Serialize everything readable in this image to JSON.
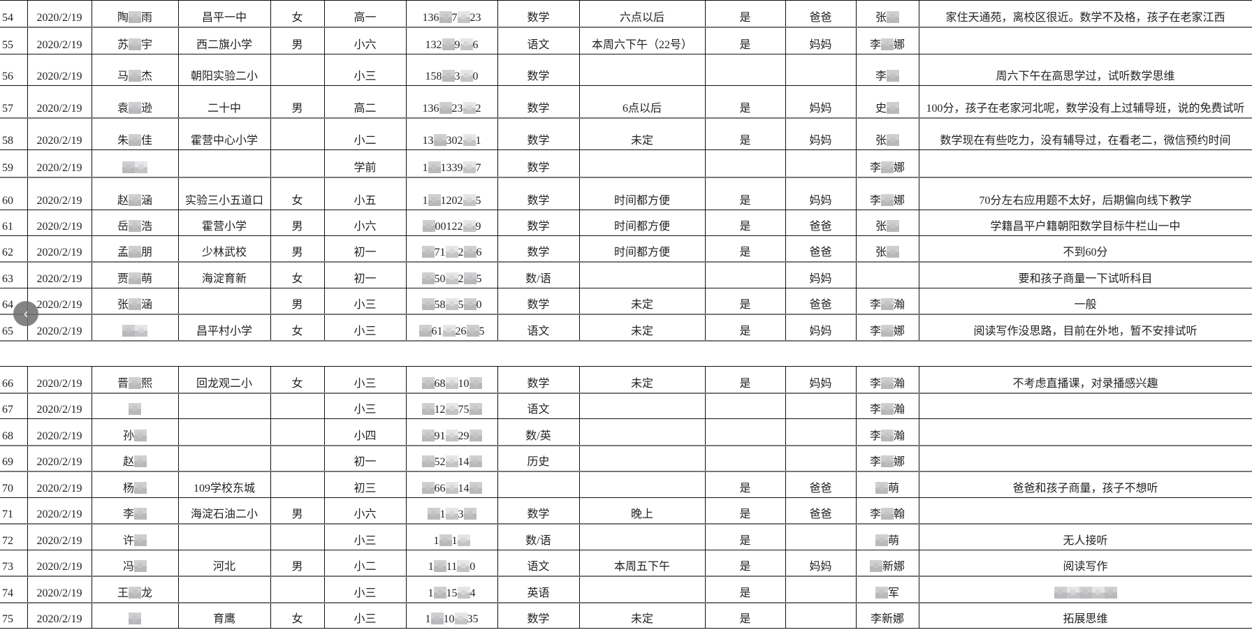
{
  "mask_char": "■",
  "rows": [
    [
      "54",
      "2020/2/19",
      "陶■雨",
      "昌平一中",
      "女",
      "高一",
      "136■7■23",
      "数学",
      "六点以后",
      "是",
      "爸爸",
      "张■",
      "家住天通苑，离校区很近。数学不及格，孩子在老家江西"
    ],
    [
      "55",
      "2020/2/19",
      "苏■宇",
      "西二旗小学",
      "男",
      "小六",
      "132■9■6",
      "语文",
      "本周六下午（22号）",
      "是",
      "妈妈",
      "李■娜",
      ""
    ],
    [
      "56",
      "2020/2/19",
      "马■杰",
      "朝阳实验二小",
      "",
      "小三",
      "158■3■0",
      "数学",
      "",
      "",
      "",
      "李■",
      "周六下午在高思学过，试听数学思维"
    ],
    [
      "57",
      "2020/2/19",
      "袁■逊",
      "二十中",
      "男",
      "高二",
      "136■23■2",
      "数学",
      "6点以后",
      "是",
      "妈妈",
      "史■",
      "100分，孩子在老家河北呢，数学没有上过辅导班，说的免费试听"
    ],
    [
      "58",
      "2020/2/19",
      "朱■佳",
      "霍营中心小学",
      "",
      "小二",
      "13■302■1",
      "数学",
      "未定",
      "是",
      "妈妈",
      "张■",
      "数学现在有些吃力，没有辅导过，在看老二，微信预约时间"
    ],
    [
      "59",
      "2020/2/19",
      "■■",
      "",
      "",
      "学前",
      "1■1339■7",
      "数学",
      "",
      "",
      "",
      "李■娜",
      ""
    ],
    [
      "60",
      "2020/2/19",
      "赵■涵",
      "实验三小五道口",
      "女",
      "小五",
      "1■1202■5",
      "数学",
      "时间都方便",
      "是",
      "妈妈",
      "李■娜",
      "70分左右应用题不太好，后期偏向线下教学"
    ],
    [
      "61",
      "2020/2/19",
      "岳■浩",
      "霍营小学",
      "男",
      "小六",
      "■00122■9",
      "数学",
      "时间都方便",
      "是",
      "爸爸",
      "张■",
      "学籍昌平户籍朝阳数学目标牛栏山一中"
    ],
    [
      "62",
      "2020/2/19",
      "孟■朋",
      "少林武校",
      "男",
      "初一",
      "■71■2■6",
      "数学",
      "时间都方便",
      "是",
      "爸爸",
      "张■",
      "不到60分"
    ],
    [
      "63",
      "2020/2/19",
      "贾■萌",
      "海淀育新",
      "女",
      "初一",
      "■50■2■5",
      "数/语",
      "",
      "",
      "妈妈",
      "",
      "要和孩子商量一下试听科目"
    ],
    [
      "64",
      "2020/2/19",
      "张■涵",
      "",
      "男",
      "小三",
      "■58■5■0",
      "数学",
      "未定",
      "是",
      "爸爸",
      "李■瀚",
      "一般"
    ],
    [
      "65",
      "2020/2/19",
      "■■",
      "昌平村小学",
      "女",
      "小三",
      "■61■26■5",
      "语文",
      "未定",
      "是",
      "妈妈",
      "李■娜",
      "阅读写作没思路，目前在外地，暂不安排试听"
    ],
    null,
    [
      "66",
      "2020/2/19",
      "晋■熙",
      "回龙观二小",
      "女",
      "小三",
      "■68■10■",
      "数学",
      "未定",
      "是",
      "妈妈",
      "李■瀚",
      "不考虑直播课，对录播感兴趣"
    ],
    [
      "67",
      "2020/2/19",
      "■",
      "",
      "",
      "小三",
      "■12■75■",
      "语文",
      "",
      "",
      "",
      "李■瀚",
      ""
    ],
    [
      "68",
      "2020/2/19",
      "孙■",
      "",
      "",
      "小四",
      "■91■29■",
      "数/英",
      "",
      "",
      "",
      "李■瀚",
      ""
    ],
    [
      "69",
      "2020/2/19",
      "赵■",
      "",
      "",
      "初一",
      "■52■14■",
      "历史",
      "",
      "",
      "",
      "李■娜",
      ""
    ],
    [
      "70",
      "2020/2/19",
      "杨■",
      "109学校东城",
      "",
      "初三",
      "■66■14■",
      "",
      "",
      "是",
      "爸爸",
      "■萌",
      "爸爸和孩子商量，孩子不想听"
    ],
    [
      "71",
      "2020/2/19",
      "李■",
      "海淀石油二小",
      "男",
      "小六",
      "■1■3■",
      "数学",
      "晚上",
      "是",
      "爸爸",
      "李■翰",
      ""
    ],
    [
      "72",
      "2020/2/19",
      "许■",
      "",
      "",
      "小三",
      "1■1■",
      "数/语",
      "",
      "是",
      "",
      "■萌",
      "无人接听"
    ],
    [
      "73",
      "2020/2/19",
      "冯■",
      "河北",
      "男",
      "小二",
      "1■11■0",
      "语文",
      "本周五下午",
      "是",
      "妈妈",
      "■新娜",
      "阅读写作"
    ],
    [
      "74",
      "2020/2/19",
      "王■龙",
      "",
      "",
      "小三",
      "1■15■4",
      "英语",
      "",
      "是",
      "",
      "■军",
      "■■■■■"
    ],
    [
      "75",
      "2020/2/19",
      "■",
      "育鹰",
      "女",
      "小三",
      "1■10■35",
      "数学",
      "未定",
      "是",
      "",
      "李新娜",
      "拓展思维"
    ]
  ],
  "row_heights_note_free": true,
  "back_button": {
    "icon": "chevron-left-icon",
    "glyph": "‹"
  }
}
